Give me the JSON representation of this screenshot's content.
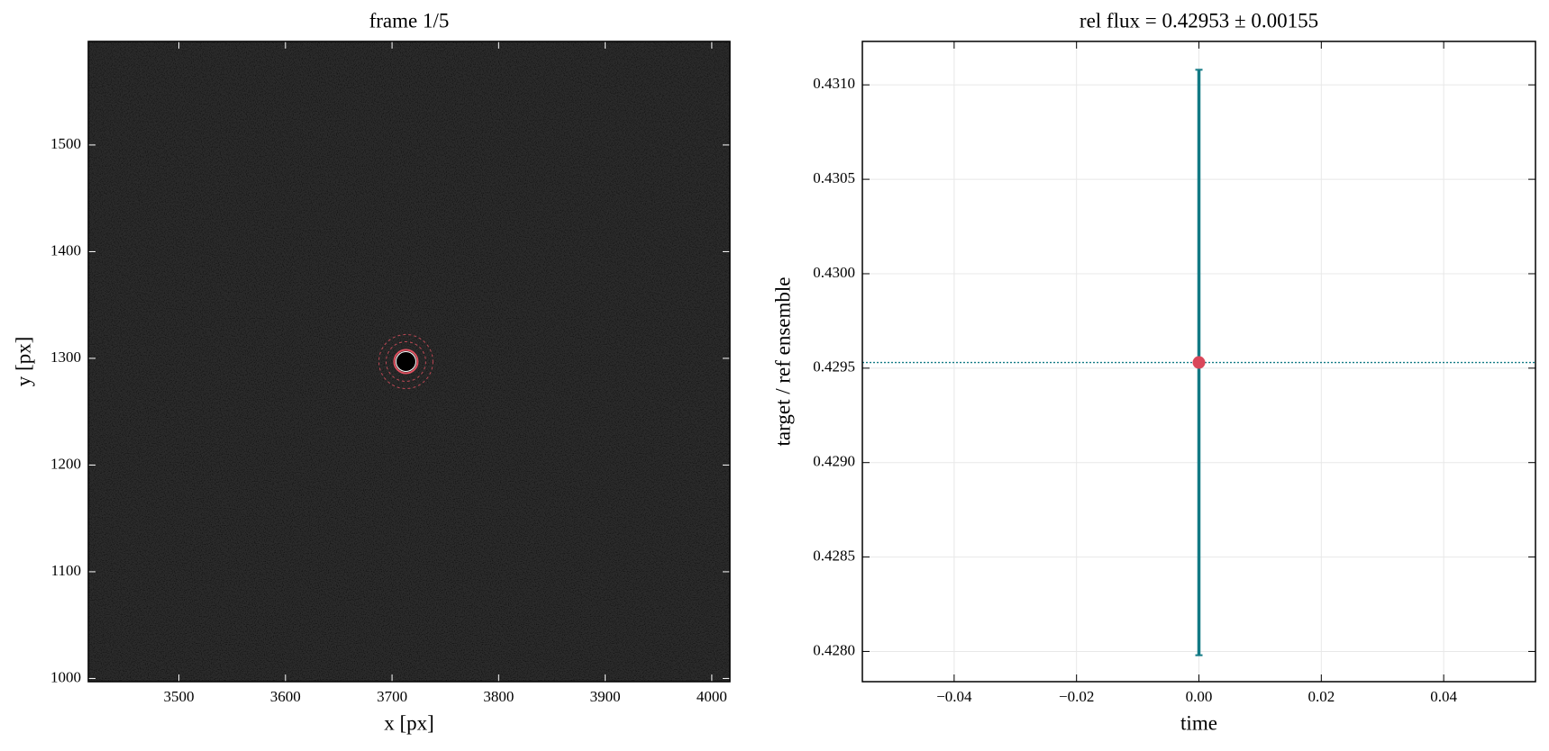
{
  "chart_data": [
    {
      "type": "image",
      "title": "frame 1/5",
      "xlabel": "x [px]",
      "ylabel": "y [px]",
      "xlim": [
        3415,
        4017
      ],
      "ylim": [
        997,
        1597
      ],
      "xticks": [
        3500,
        3600,
        3700,
        3800,
        3900,
        4000
      ],
      "yticks": [
        1000,
        1100,
        1200,
        1300,
        1400,
        1500
      ],
      "x": [
        3713
      ],
      "series": [
        {
          "values": [
            1297
          ],
          "color": "#e0505f"
        }
      ],
      "grid": false
    },
    {
      "type": "errorbar",
      "title": "rel flux = 0.42953 ± 0.00155",
      "xlabel": "time",
      "ylabel": "target / ref ensemble",
      "xlim": [
        -0.055,
        0.055
      ],
      "ylim": [
        0.42784,
        0.43123
      ],
      "xticks": [
        {
          "value": -0.04,
          "label": "−0.04"
        },
        {
          "value": -0.02,
          "label": "−0.02"
        },
        {
          "value": 0,
          "label": "0.00"
        },
        0.02,
        0.04
      ],
      "yticks": [
        {
          "value": 0.428,
          "label": "0.4280"
        },
        0.4285,
        {
          "value": 0.429,
          "label": "0.4290"
        },
        0.4295,
        {
          "value": 0.43,
          "label": "0.4300"
        },
        0.4305,
        {
          "value": 0.431,
          "label": "0.4310"
        }
      ],
      "x": [
        0
      ],
      "series": [
        {
          "values": [
            0.42953
          ],
          "errors": [
            0.00155
          ],
          "color": "#d9475a",
          "error_color": "#137a85"
        }
      ],
      "grid": true
    }
  ]
}
